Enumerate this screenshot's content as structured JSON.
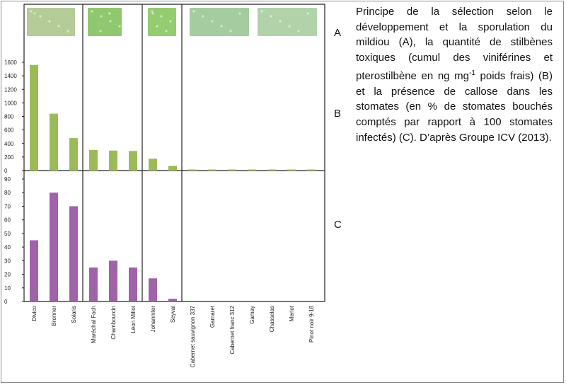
{
  "caption": {
    "part1": "Principe de la sélection selon le développement et la sporulation du mildiou (A), la quantité de stilbènes toxiques (cumul des viniférines et pterostilbène en ng mg",
    "superscript": "-1",
    "part2": " poids frais) (B) et la présence de callose dans les stomates (en % de stomates bouchés comptés par rapport à 100 stomates infectés) (C). D’après Groupe ICV (2013)."
  },
  "panel_labels": {
    "a": "A",
    "b": "B",
    "c": "C"
  },
  "colors": {
    "green_bars": "#9bbb59",
    "purple_bars": "#a062a8",
    "axis": "#222222"
  },
  "photos": [
    {
      "name": "photo-leaf-1",
      "color": "#b5cc98"
    },
    {
      "name": "photo-leaf-2",
      "color": "#8fc86e"
    },
    {
      "name": "photo-leaf-3",
      "color": "#94cc72"
    },
    {
      "name": "photo-leaf-4",
      "color": "#a4cca0"
    },
    {
      "name": "photo-leaf-5",
      "color": "#b2d2aa"
    }
  ],
  "chart_data": [
    {
      "type": "bar",
      "panel": "B",
      "categories": [
        "Divico",
        "Bronner",
        "Solaris",
        "Maréchal Foch",
        "Chambourcin",
        "Léon Millot",
        "Johanniter",
        "Seyval",
        "Cabernet sauvignon 337",
        "Gamaret",
        "Cabernet franc 312",
        "Gamay",
        "Chasselas",
        "Merlot",
        "Pinot noir 9-18"
      ],
      "values": [
        1560,
        840,
        480,
        305,
        295,
        290,
        175,
        70,
        8,
        5,
        4,
        3,
        3,
        3,
        3
      ],
      "ylim": [
        0,
        1600
      ],
      "yticks": [
        0,
        200,
        400,
        600,
        800,
        1000,
        1200,
        1400,
        1600
      ],
      "groups": [
        3,
        3,
        2,
        7
      ]
    },
    {
      "type": "bar",
      "panel": "C",
      "categories": [
        "Divico",
        "Bronner",
        "Solaris",
        "Maréchal Foch",
        "Chambourcin",
        "Léon Millot",
        "Johanniter",
        "Seyval",
        "Cabernet sauvignon 337",
        "Gamaret",
        "Cabernet franc 312",
        "Gamay",
        "Chasselas",
        "Merlot",
        "Pinot noir 9-18"
      ],
      "values": [
        45,
        80,
        70,
        25,
        30,
        25,
        17,
        2,
        0,
        0,
        0,
        0,
        0,
        0,
        0
      ],
      "ylim": [
        0,
        90
      ],
      "yticks": [
        0,
        10,
        20,
        30,
        40,
        50,
        60,
        70,
        80,
        90
      ],
      "groups": [
        3,
        3,
        2,
        7
      ]
    }
  ]
}
